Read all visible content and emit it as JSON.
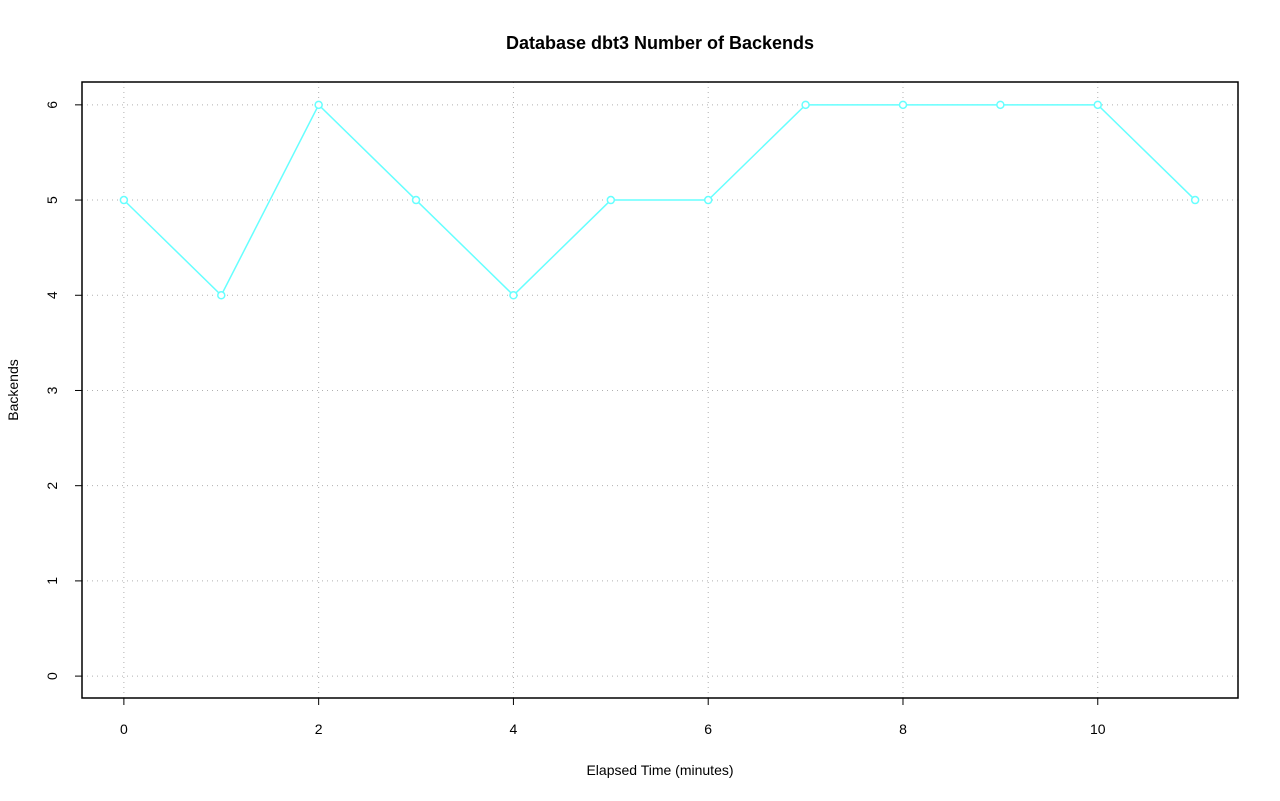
{
  "chart_data": {
    "type": "line",
    "title": "Database dbt3 Number of Backends",
    "x_label": "Elapsed Time (minutes)",
    "y_label": "Backends",
    "x": [
      0,
      1,
      2,
      3,
      4,
      5,
      6,
      7,
      8,
      9,
      10,
      11
    ],
    "values": [
      5,
      4,
      6,
      5,
      4,
      5,
      5,
      6,
      6,
      6,
      6,
      5
    ],
    "color": "#66ffff",
    "xlim": [
      -0.43,
      11.44
    ],
    "xticks": [
      0,
      2,
      4,
      6,
      8,
      10
    ],
    "ylim": [
      -0.23,
      6.24
    ],
    "yticks": [
      0,
      1,
      2,
      3,
      4,
      5,
      6
    ],
    "grid": true
  }
}
